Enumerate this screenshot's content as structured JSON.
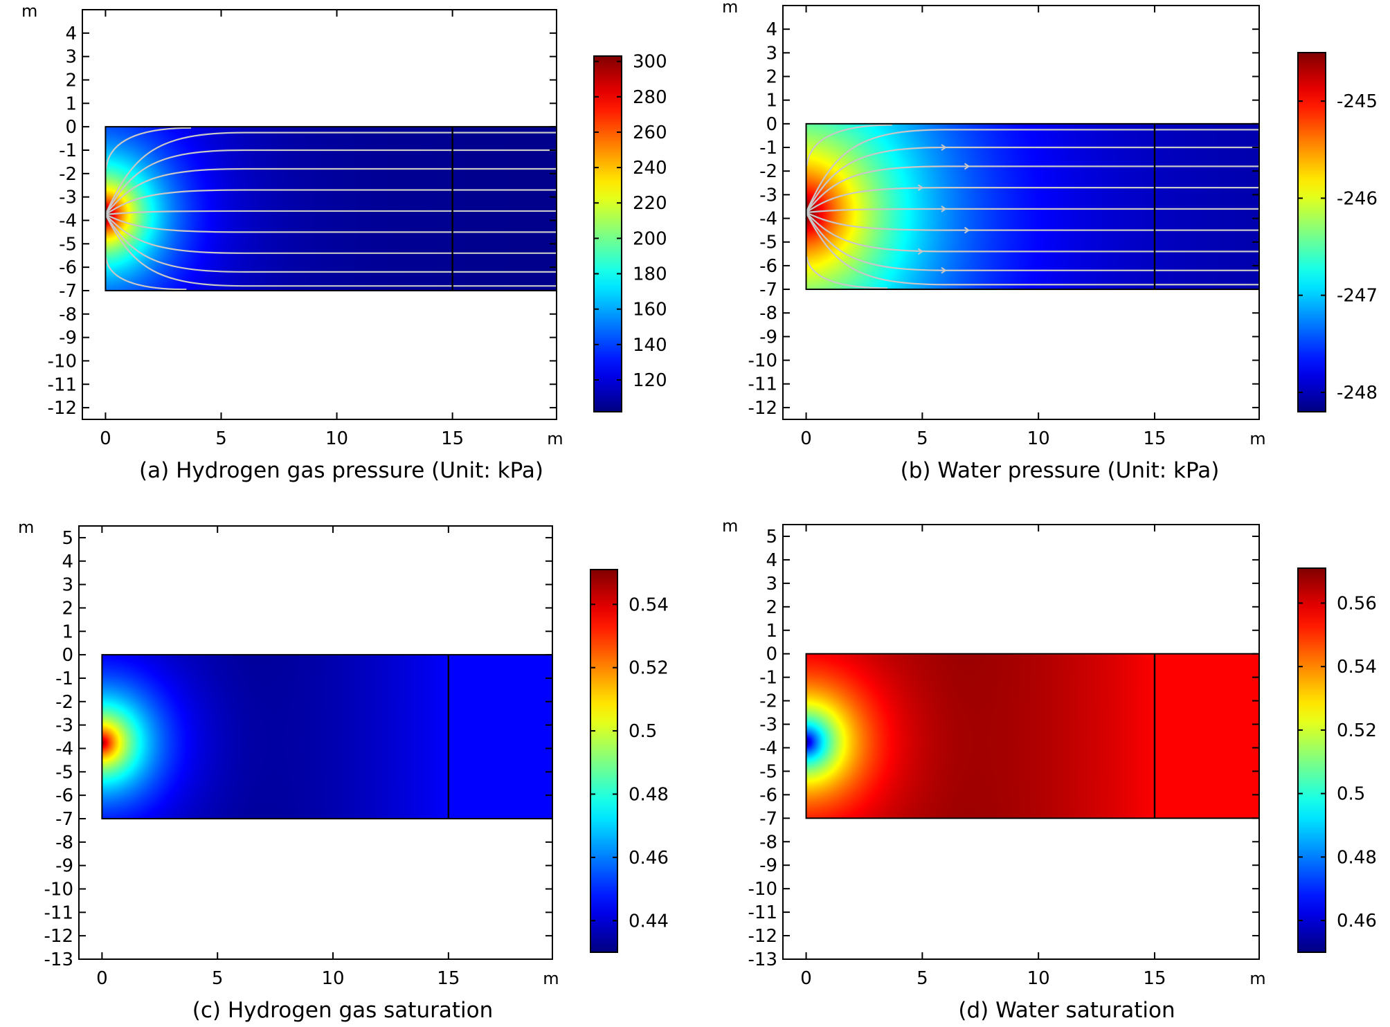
{
  "chart_data": [
    {
      "type": "heatmap",
      "caption": "(a) Hydrogen gas pressure (Unit: kPa)",
      "x_unit": "m",
      "y_unit": "m",
      "x_ticks": [
        0,
        5,
        10,
        15
      ],
      "y_ticks": [
        4,
        3,
        2,
        1,
        0,
        -1,
        -2,
        -3,
        -4,
        -5,
        -6,
        -7,
        -8,
        -9,
        -10,
        -11,
        -12
      ],
      "xlim": [
        -1,
        19.5
      ],
      "ylim": [
        -12.5,
        5
      ],
      "domain": {
        "x": [
          0,
          19.5
        ],
        "y": [
          -7,
          0
        ]
      },
      "boundary_line_x": 15,
      "source_point": {
        "x": 0,
        "y": -3.75
      },
      "colorbar": {
        "min": 102,
        "max": 303,
        "ticks": [
          300,
          280,
          260,
          240,
          220,
          200,
          180,
          160,
          140,
          120
        ]
      },
      "field": {
        "peak_value": 303,
        "far_value": 103,
        "decay_length_m": 1.9,
        "far_decay_length_m": 9
      },
      "streamlines": true,
      "streamline_color": "#c8c8c8"
    },
    {
      "type": "heatmap",
      "caption": "(b) Water pressure (Unit: kPa)",
      "x_unit": "m",
      "y_unit": "m",
      "x_ticks": [
        0,
        5,
        10,
        15
      ],
      "y_ticks": [
        4,
        3,
        2,
        1,
        0,
        -1,
        -2,
        -3,
        -4,
        -5,
        -6,
        -7,
        -8,
        -9,
        -10,
        -11,
        -12
      ],
      "xlim": [
        -1,
        19.5
      ],
      "ylim": [
        -12.5,
        5
      ],
      "domain": {
        "x": [
          0,
          19.5
        ],
        "y": [
          -7,
          0
        ]
      },
      "boundary_line_x": 15,
      "source_point": {
        "x": 0,
        "y": -3.75
      },
      "colorbar": {
        "min": -248.2,
        "max": -244.5,
        "ticks": [
          -245,
          -246,
          -247,
          -248
        ]
      },
      "field": {
        "peak_value": -244.6,
        "far_value": -248.1,
        "decay_length_m": 4.2,
        "far_decay_length_m": 12
      },
      "streamlines": true,
      "streamline_color": "#c8c8c8"
    },
    {
      "type": "heatmap",
      "caption": "(c) Hydrogen gas saturation",
      "x_unit": "m",
      "y_unit": "m",
      "x_ticks": [
        0,
        5,
        10,
        15
      ],
      "y_ticks": [
        5,
        4,
        3,
        2,
        1,
        0,
        -1,
        -2,
        -3,
        -4,
        -5,
        -6,
        -7,
        -8,
        -9,
        -10,
        -11,
        -12,
        -13
      ],
      "xlim": [
        -1,
        19.5
      ],
      "ylim": [
        -13,
        5.5
      ],
      "domain": {
        "x": [
          0,
          19.5
        ],
        "y": [
          -7,
          0
        ]
      },
      "boundary_line_x": 15,
      "source_point": {
        "x": 0,
        "y": -3.75
      },
      "colorbar": {
        "min": 0.43,
        "max": 0.551,
        "ticks": [
          0.54,
          0.52,
          0.5,
          0.48,
          0.46,
          0.44
        ]
      },
      "field": {
        "peak_value": 0.548,
        "trough_value": 0.432,
        "trough_x_m": 6.5,
        "right_value": 0.445,
        "decay_length_m": 1.7
      },
      "streamlines": false
    },
    {
      "type": "heatmap",
      "caption": "(d) Water saturation",
      "x_unit": "m",
      "y_unit": "m",
      "x_ticks": [
        0,
        5,
        10,
        15
      ],
      "y_ticks": [
        5,
        4,
        3,
        2,
        1,
        0,
        -1,
        -2,
        -3,
        -4,
        -5,
        -6,
        -7,
        -8,
        -9,
        -10,
        -11,
        -12,
        -13
      ],
      "xlim": [
        -1,
        19.5
      ],
      "ylim": [
        -13,
        5.5
      ],
      "domain": {
        "x": [
          0,
          19.5
        ],
        "y": [
          -7,
          0
        ]
      },
      "boundary_line_x": 15,
      "source_point": {
        "x": 0,
        "y": -3.75
      },
      "colorbar": {
        "min": 0.45,
        "max": 0.571,
        "ticks": [
          0.56,
          0.54,
          0.52,
          0.5,
          0.48,
          0.46
        ]
      },
      "field": {
        "peak_value": 0.453,
        "trough_value": 0.569,
        "trough_x_m": 6.5,
        "right_value": 0.556,
        "decay_length_m": 1.7
      },
      "streamlines": false
    }
  ]
}
